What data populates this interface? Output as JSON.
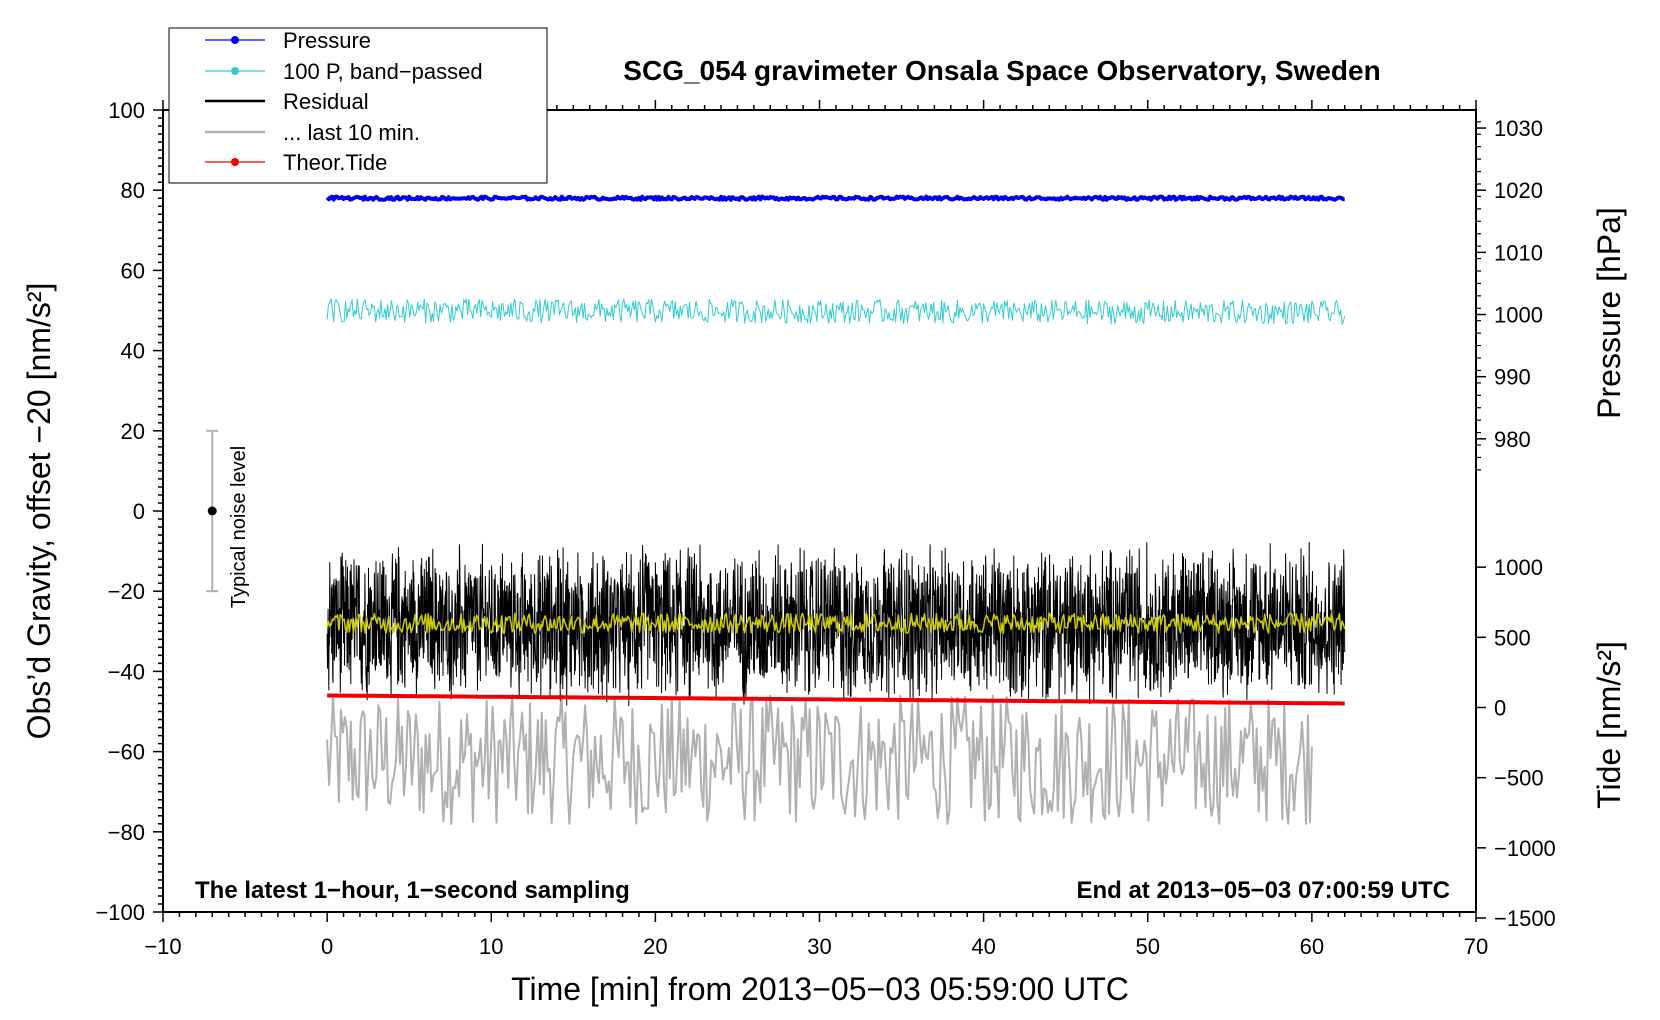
{
  "chart_data": {
    "type": "line",
    "title": "SCG_054 gravimeter Onsala Space Observatory, Sweden",
    "xlabel": "Time [min] from 2013−05−03 05:59:00 UTC",
    "ylabel_left": "Obs’d Gravity, offset −20 [nm/s²]",
    "ylabel_right_pressure": "Pressure [hPa]",
    "ylabel_right_tide": "Tide [nm/s²]",
    "xlim": [
      -10,
      70
    ],
    "ylim": [
      -100,
      100
    ],
    "pressure_axis_range": [
      980,
      1030
    ],
    "tide_axis_range": [
      -1500,
      1000
    ],
    "x_ticks": [
      "−10",
      "0",
      "10",
      "20",
      "30",
      "40",
      "50",
      "60",
      "70"
    ],
    "y_ticks": [
      "100",
      "80",
      "60",
      "40",
      "20",
      "0",
      "−20",
      "−40",
      "−60",
      "−80",
      "−100"
    ],
    "pressure_ticks": [
      "1030",
      "1020",
      "1010",
      "1000",
      "990",
      "980"
    ],
    "tide_ticks": [
      "1000",
      "500",
      "0",
      "−500",
      "−1000",
      "−1500"
    ],
    "legend": {
      "placement": "top-left",
      "entries": [
        "Pressure",
        "100 P, band−passed",
        "Residual",
        "... last 10 min.",
        "Theor.Tide"
      ]
    },
    "annotations": {
      "bottom_left": "The latest 1−hour, 1−second sampling",
      "bottom_right": "End at 2013−05−03 07:00:59 UTC",
      "noise_label": "Typical noise level"
    },
    "noise_bar": {
      "x": -7,
      "center": 0,
      "low": -20,
      "high": 20
    },
    "series": [
      {
        "name": "Pressure",
        "color": "#0000ee",
        "x_range": [
          0,
          62
        ],
        "y_level": 78,
        "y_end": 78,
        "noise": 0.4
      },
      {
        "name": "100 P, band−passed",
        "color": "#33cccc",
        "x_range": [
          0,
          62
        ],
        "y_level": 50,
        "y_end": 49.5,
        "noise": 3
      },
      {
        "name": "Residual",
        "color": "#000000",
        "x_range": [
          0,
          62
        ],
        "y_level": -28,
        "y_end": -28,
        "noise": 15
      },
      {
        "name": "",
        "color": "#cccc00",
        "x_range": [
          0,
          62
        ],
        "y_level": -28,
        "y_end": -28,
        "noise": 2.5
      },
      {
        "name": "... last 10 min.",
        "color": "#b0b0b0",
        "x_range": [
          0,
          60
        ],
        "y_level": -62,
        "y_end": -62,
        "noise": 18
      },
      {
        "name": "Theor.Tide",
        "color": "#ee0000",
        "x_range": [
          0,
          62
        ],
        "y_level": -46,
        "y_end": -48,
        "noise": 0
      }
    ],
    "grid": false
  }
}
